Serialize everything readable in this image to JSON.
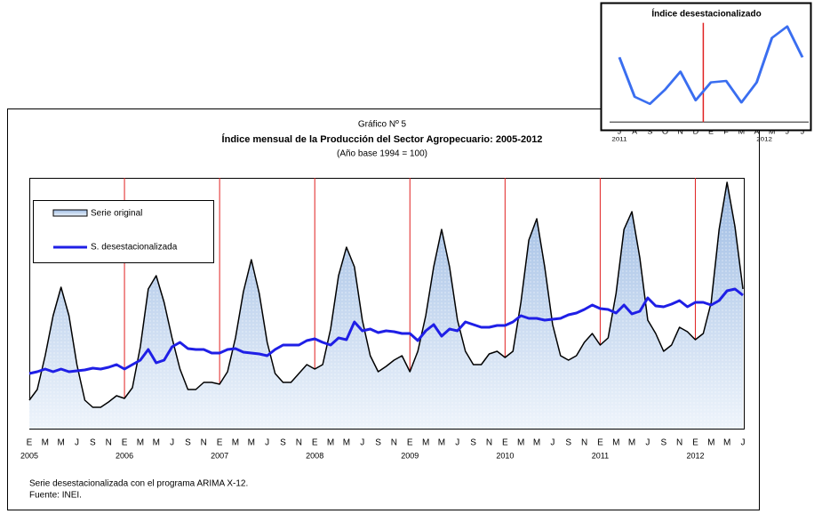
{
  "chart_data": [
    {
      "type": "line",
      "caption": "Gráfico Nº 5",
      "title": "Índice mensual de la Producción del Sector Agropecuario: 2005-2012",
      "subtitle": "(Año base 1994 = 100)",
      "categories": [
        "E",
        null,
        "M",
        null,
        "M",
        null,
        "J",
        null,
        "S",
        null,
        "N",
        null,
        "E",
        null,
        "M",
        null,
        "M",
        null,
        "J",
        null,
        "S",
        null,
        "N",
        null,
        "E",
        null,
        "M",
        null,
        "M",
        null,
        "J",
        null,
        "S",
        null,
        "N",
        null,
        "E",
        null,
        "M",
        null,
        "M",
        null,
        "J",
        null,
        "S",
        null,
        "N",
        null,
        "E",
        null,
        "M",
        null,
        "M",
        null,
        "J",
        null,
        "S",
        null,
        "N",
        null,
        "E",
        null,
        "M",
        null,
        "M",
        null,
        "J",
        null,
        "S",
        null,
        "N",
        null,
        "E",
        null,
        "M",
        null,
        "M",
        null,
        "J",
        null,
        "S",
        null,
        "N",
        null,
        "E",
        null,
        "M",
        null,
        "M",
        null,
        "J"
      ],
      "years": [
        "2005",
        "2006",
        "2007",
        "2008",
        "2009",
        "2010",
        "2011",
        "2012"
      ],
      "ylim": [
        80,
        362
      ],
      "legend": "top-left",
      "series": [
        {
          "name": "Serie original",
          "color": "#000000",
          "fill": true,
          "values": [
            112,
            124,
            162,
            207,
            239,
            207,
            152,
            112,
            104,
            104,
            110,
            117,
            114,
            126,
            172,
            237,
            252,
            222,
            182,
            147,
            124,
            124,
            132,
            132,
            130,
            144,
            182,
            234,
            270,
            232,
            177,
            142,
            132,
            132,
            142,
            152,
            147,
            152,
            192,
            252,
            284,
            262,
            202,
            162,
            144,
            150,
            157,
            162,
            144,
            167,
            207,
            262,
            304,
            262,
            202,
            167,
            152,
            152,
            164,
            167,
            160,
            167,
            222,
            292,
            316,
            262,
            197,
            162,
            157,
            162,
            177,
            187,
            174,
            182,
            232,
            304,
            324,
            272,
            202,
            187,
            167,
            174,
            194,
            189,
            180,
            187,
            222,
            304,
            357,
            307,
            237
          ]
        },
        {
          "name": "S. desestacionalizada",
          "color": "#1f1fe6",
          "fill": false,
          "values": [
            142,
            144,
            147,
            144,
            147,
            144,
            145,
            146,
            148,
            147,
            149,
            152,
            147,
            152,
            157,
            169,
            154,
            157,
            172,
            177,
            170,
            169,
            169,
            165,
            165,
            169,
            170,
            166,
            165,
            164,
            162,
            169,
            174,
            174,
            174,
            179,
            181,
            177,
            174,
            182,
            180,
            200,
            190,
            192,
            188,
            190,
            189,
            187,
            187,
            179,
            190,
            197,
            184,
            192,
            190,
            200,
            197,
            194,
            194,
            196,
            196,
            200,
            207,
            204,
            204,
            202,
            203,
            204,
            208,
            210,
            214,
            219,
            215,
            214,
            210,
            219,
            209,
            212,
            227,
            218,
            217,
            220,
            224,
            217,
            222,
            222,
            219,
            224,
            235,
            237,
            230
          ]
        }
      ]
    },
    {
      "type": "line",
      "title": "Índice desestacionalizado",
      "categories": [
        "J",
        "A",
        "S",
        "O",
        "N",
        "D",
        "E",
        "F",
        "M",
        "A",
        "M",
        "J",
        "J"
      ],
      "years": [
        "2011",
        "2012"
      ],
      "ylim": [
        40,
        162
      ],
      "color": "#3a6ef0",
      "values": [
        115,
        60,
        50,
        70,
        95,
        55,
        80,
        82,
        52,
        80,
        142,
        158,
        115
      ]
    }
  ],
  "notes": [
    "Serie desestacionalizada con el programa ARIMA X-12.",
    "Fuente: INEI."
  ]
}
